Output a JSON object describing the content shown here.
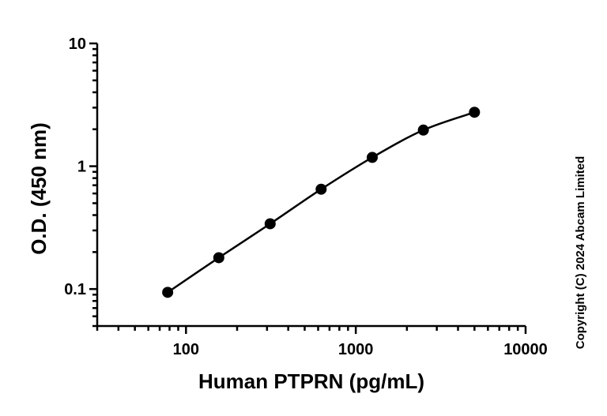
{
  "chart_data": {
    "type": "scatter",
    "title": "",
    "xlabel": "Human PTPRN (pg/mL)",
    "ylabel": "O.D. (450 nm)",
    "x_scale": "log",
    "y_scale": "log",
    "xlim": [
      30,
      10000
    ],
    "ylim": [
      0.05,
      10
    ],
    "x_ticks": [
      100,
      1000,
      10000
    ],
    "x_tick_labels": [
      "100",
      "1000",
      "10000"
    ],
    "y_ticks": [
      0.1,
      1,
      10
    ],
    "y_tick_labels": [
      "0.1",
      "1",
      "10"
    ],
    "grid": false,
    "legend": "none",
    "series": [
      {
        "x": [
          78,
          156,
          313,
          625,
          1250,
          2500,
          5000
        ],
        "y": [
          0.094,
          0.18,
          0.34,
          0.65,
          1.18,
          1.97,
          2.75
        ],
        "marker": "circle",
        "fit_curve": true
      }
    ],
    "annotation": "Copyright (C) 2024 Abcam Limited"
  },
  "colors": {
    "line": "#000000",
    "marker": "#000000"
  }
}
